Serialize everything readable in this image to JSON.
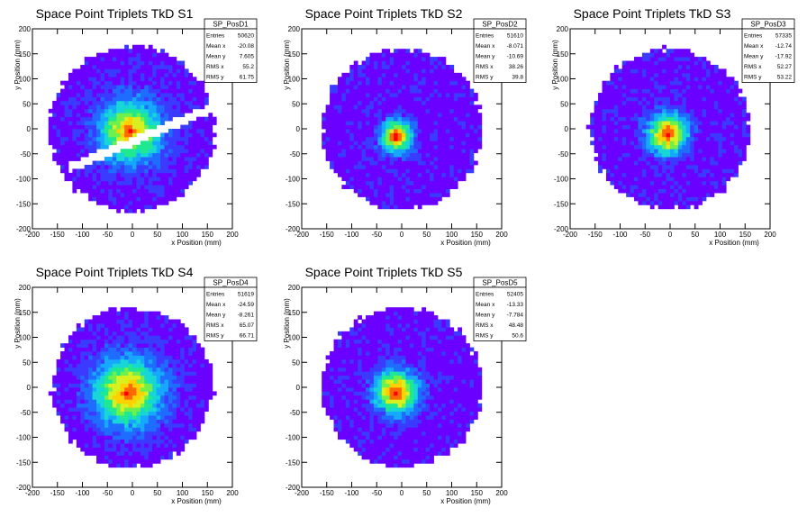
{
  "chart_data": [
    {
      "type": "heatmap",
      "title": "Space Point Triplets TkD S1",
      "xlabel": "x Position (mm)",
      "ylabel": "y Position (mm)",
      "xlim": [
        -200,
        200
      ],
      "ylim": [
        -200,
        200
      ],
      "xticks": [
        "-200",
        "-150",
        "-100",
        "-50",
        "0",
        "50",
        "100",
        "150",
        "200"
      ],
      "yticks": [
        "-200",
        "-150",
        "-100",
        "-50",
        "0",
        "50",
        "100",
        "150",
        "200"
      ],
      "stats": {
        "name": "SP_PosD1",
        "rows": [
          {
            "label": "Entries",
            "value": "50620"
          },
          {
            "label": "Mean x",
            "value": "-20.08"
          },
          {
            "label": "Mean y",
            "value": "7.605"
          },
          {
            "label": "RMS x",
            "value": "55.2"
          },
          {
            "label": "RMS y",
            "value": "61.75"
          }
        ]
      },
      "peak": {
        "x": -5,
        "y": -5
      },
      "radius": 165,
      "spread": 40,
      "gap_band": {
        "slope": 0.42,
        "intercept": -25,
        "half_width": 10
      }
    },
    {
      "type": "heatmap",
      "title": "Space Point Triplets TkD S2",
      "xlabel": "x Position (mm)",
      "ylabel": "y Position (mm)",
      "xlim": [
        -200,
        200
      ],
      "ylim": [
        -200,
        200
      ],
      "xticks": [
        "-200",
        "-150",
        "-100",
        "-50",
        "0",
        "50",
        "100",
        "150",
        "200"
      ],
      "yticks": [
        "-200",
        "-150",
        "-100",
        "-50",
        "0",
        "50",
        "100",
        "150",
        "200"
      ],
      "stats": {
        "name": "SP_PosD2",
        "rows": [
          {
            "label": "Entries",
            "value": "51610"
          },
          {
            "label": "Mean x",
            "value": "-8.071"
          },
          {
            "label": "Mean y",
            "value": "-10.69"
          },
          {
            "label": "RMS x",
            "value": "38.26"
          },
          {
            "label": "RMS y",
            "value": "39.8"
          }
        ]
      },
      "peak": {
        "x": -10,
        "y": -15
      },
      "radius": 160,
      "spread": 22
    },
    {
      "type": "heatmap",
      "title": "Space Point Triplets TkD S3",
      "xlabel": "x Position (mm)",
      "ylabel": "y Position (mm)",
      "xlim": [
        -200,
        200
      ],
      "ylim": [
        -200,
        200
      ],
      "xticks": [
        "-200",
        "-150",
        "-100",
        "-50",
        "0",
        "50",
        "100",
        "150",
        "200"
      ],
      "yticks": [
        "-200",
        "-150",
        "-100",
        "-50",
        "0",
        "50",
        "100",
        "150",
        "200"
      ],
      "stats": {
        "name": "SP_PosD3",
        "rows": [
          {
            "label": "Entries",
            "value": "57335"
          },
          {
            "label": "Mean x",
            "value": "-12.74"
          },
          {
            "label": "Mean y",
            "value": "-17.92"
          },
          {
            "label": "RMS x",
            "value": "52.27"
          },
          {
            "label": "RMS y",
            "value": "53.22"
          }
        ]
      },
      "peak": {
        "x": -5,
        "y": -10
      },
      "radius": 160,
      "spread": 28
    },
    {
      "type": "heatmap",
      "title": "Space Point Triplets TkD S4",
      "xlabel": "x Position (mm)",
      "ylabel": "y Position (mm)",
      "xlim": [
        -200,
        200
      ],
      "ylim": [
        -200,
        200
      ],
      "xticks": [
        "-200",
        "-150",
        "-100",
        "-50",
        "0",
        "50",
        "100",
        "150",
        "200"
      ],
      "yticks": [
        "-200",
        "-150",
        "-100",
        "-50",
        "0",
        "50",
        "100",
        "150",
        "200"
      ],
      "stats": {
        "name": "SP_PosD4",
        "rows": [
          {
            "label": "Entries",
            "value": "51619"
          },
          {
            "label": "Mean x",
            "value": "-24.59"
          },
          {
            "label": "Mean y",
            "value": "-8.261"
          },
          {
            "label": "RMS x",
            "value": "65.07"
          },
          {
            "label": "RMS y",
            "value": "66.71"
          }
        ]
      },
      "peak": {
        "x": -10,
        "y": -10
      },
      "radius": 160,
      "spread": 45
    },
    {
      "type": "heatmap",
      "title": "Space Point Triplets TkD S5",
      "xlabel": "x Position (mm)",
      "ylabel": "y Position (mm)",
      "xlim": [
        -200,
        200
      ],
      "ylim": [
        -200,
        200
      ],
      "xticks": [
        "-200",
        "-150",
        "-100",
        "-50",
        "0",
        "50",
        "100",
        "150",
        "200"
      ],
      "yticks": [
        "-200",
        "-150",
        "-100",
        "-50",
        "0",
        "50",
        "100",
        "150",
        "200"
      ],
      "stats": {
        "name": "SP_PosD5",
        "rows": [
          {
            "label": "Entries",
            "value": "52405"
          },
          {
            "label": "Mean x",
            "value": "-13.33"
          },
          {
            "label": "Mean y",
            "value": "-7.784"
          },
          {
            "label": "RMS x",
            "value": "48.48"
          },
          {
            "label": "RMS y",
            "value": "50.6"
          }
        ]
      },
      "peak": {
        "x": -10,
        "y": -10
      },
      "radius": 160,
      "spread": 30
    }
  ],
  "colors": {
    "palette": [
      "#6a00ff",
      "#3b3bff",
      "#1f6dff",
      "#16a8ff",
      "#16d6d6",
      "#1ee890",
      "#6ff04a",
      "#d8f020",
      "#ffd000",
      "#ff6a00",
      "#ff0000"
    ],
    "frame": "#000000"
  }
}
